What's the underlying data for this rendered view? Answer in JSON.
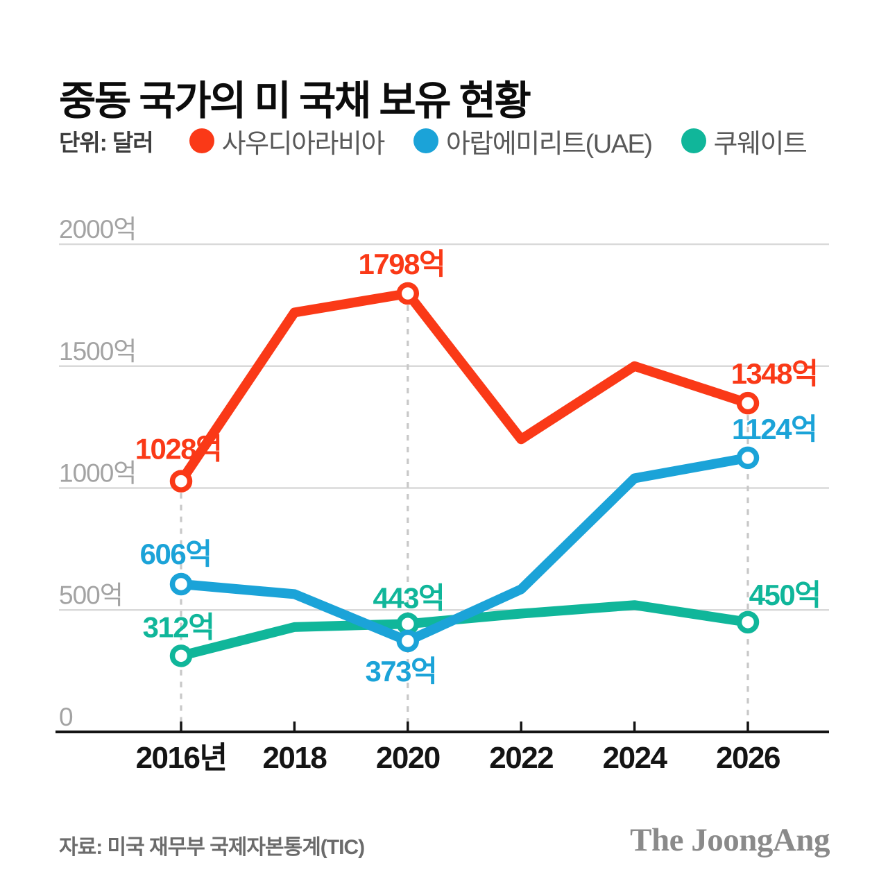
{
  "header": {
    "title": "중동 국가의 미 국채 보유 현황",
    "unit_label": "단위: 달러"
  },
  "chart_data": {
    "type": "line",
    "title": "중동 국가의 미 국채 보유 현황",
    "xlabel": "",
    "ylabel": "",
    "ylim": [
      0,
      2000
    ],
    "grid": true,
    "legend_position": "top",
    "x_tick_labels": [
      "2016년",
      "2018",
      "2020",
      "2022",
      "2024",
      "2026"
    ],
    "y_ticks": [
      {
        "value": 0,
        "label": "0"
      },
      {
        "value": 500,
        "label": "500억"
      },
      {
        "value": 1000,
        "label": "1000억"
      },
      {
        "value": 1500,
        "label": "1500억"
      },
      {
        "value": 2000,
        "label": "2000억"
      }
    ],
    "labeled_indices": [
      0,
      2,
      5
    ],
    "series": [
      {
        "name": "사우디아라비아",
        "color": "#fa3917",
        "values": [
          1028,
          1720,
          1798,
          1200,
          1500,
          1348
        ],
        "point_labels": {
          "0": "1028억",
          "2": "1798억",
          "5": "1348억"
        }
      },
      {
        "name": "아랍에미리트(UAE)",
        "color": "#1ba3d8",
        "values": [
          606,
          565,
          373,
          585,
          1040,
          1124
        ],
        "point_labels": {
          "0": "606억",
          "2": "373억",
          "5": "1124억"
        }
      },
      {
        "name": "쿠웨이트",
        "color": "#10b69a",
        "values": [
          312,
          430,
          443,
          485,
          520,
          450
        ],
        "point_labels": {
          "0": "312억",
          "2": "443억",
          "5": "450억"
        }
      }
    ]
  },
  "footer": {
    "source": "자료: 미국 재무부 국제자본통계(TIC)",
    "logo": "The JoongAng"
  }
}
